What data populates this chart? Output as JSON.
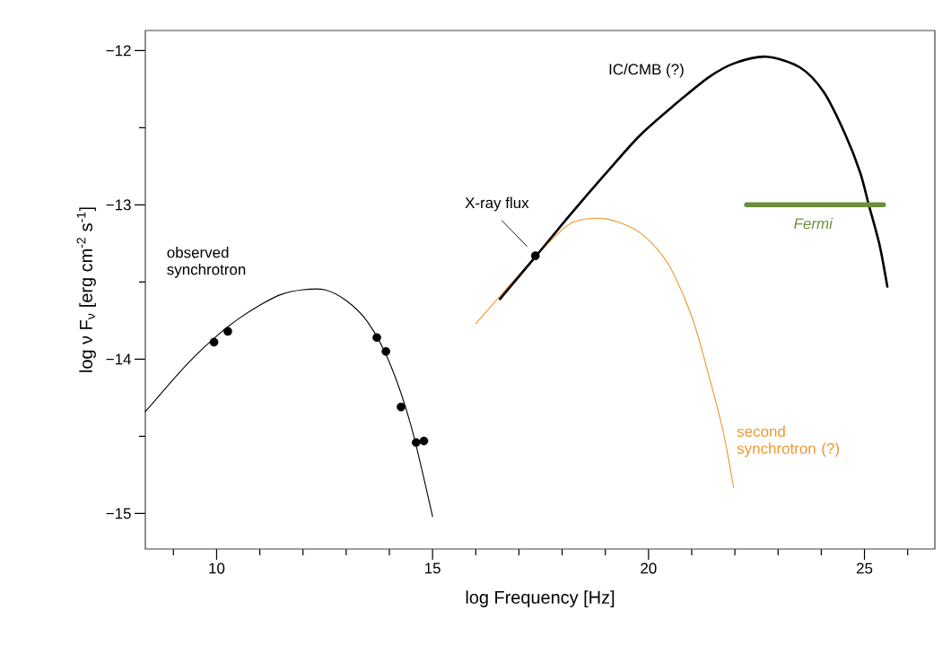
{
  "chart_data": {
    "type": "line",
    "xlabel": "log Frequency [Hz]",
    "ylabel": "log ν F$_{ν}$ [erg cm$^{-2}$ s$^{-1}$]",
    "xlim": [
      8.35,
      26.63
    ],
    "ylim": [
      -15.23,
      -11.87
    ],
    "xticks": [
      {
        "value": 9,
        "label": null
      },
      10,
      {
        "value": 11,
        "label": null
      },
      {
        "value": 12,
        "label": null
      },
      {
        "value": 13,
        "label": null
      },
      {
        "value": 14,
        "label": null
      },
      15,
      {
        "value": 16,
        "label": null
      },
      {
        "value": 17,
        "label": null
      },
      {
        "value": 18,
        "label": null
      },
      {
        "value": 19,
        "label": null
      },
      20,
      {
        "value": 21,
        "label": null
      },
      {
        "value": 22,
        "label": null
      },
      {
        "value": 23,
        "label": null
      },
      {
        "value": 24,
        "label": null
      },
      25,
      {
        "value": 26,
        "label": null
      }
    ],
    "yticks": [
      {
        "value": -15,
        "label": "−15"
      },
      {
        "value": -14.5,
        "label": null
      },
      {
        "value": -14,
        "label": "−14"
      },
      {
        "value": -13.5,
        "label": null
      },
      {
        "value": -13,
        "label": "−13"
      },
      {
        "value": -12.5,
        "label": null
      },
      {
        "value": -12,
        "label": "−12"
      }
    ],
    "series": [
      {
        "name": "observed synchrotron",
        "color": "#000000",
        "marker": "none",
        "x": [
          8.35,
          9,
          9.5,
          10,
          10.5,
          11,
          11.5,
          12,
          12.5,
          13,
          13.5,
          14,
          14.5,
          15
        ],
        "values": [
          -14.34,
          -14.13,
          -13.98,
          -13.85,
          -13.74,
          -13.65,
          -13.58,
          -13.55,
          -13.55,
          -13.62,
          -13.76,
          -14.02,
          -14.43,
          -15.02
        ]
      },
      {
        "type": "scatter",
        "color": "#000000",
        "marker": "circle",
        "x": [
          9.94,
          10.26,
          13.71,
          13.92,
          14.27,
          14.62,
          14.8
        ],
        "values": [
          -13.89,
          -13.82,
          -13.86,
          -13.95,
          -14.31,
          -14.54,
          -14.53
        ]
      },
      {
        "name": "second synchrotron (?)",
        "color": "#f0962e",
        "marker": "none",
        "x": [
          16.0,
          17.4,
          18.2,
          19.0,
          19.8,
          20.45,
          21.01,
          21.41,
          21.73,
          21.97
        ],
        "values": [
          -13.77,
          -13.33,
          -13.12,
          -13.09,
          -13.18,
          -13.38,
          -13.73,
          -14.12,
          -14.47,
          -14.83
        ]
      },
      {
        "name": "IC/CMB (?)",
        "color": "#000000",
        "marker": "none",
        "x": [
          16.56,
          17.4,
          18.2,
          19.0,
          19.8,
          20.61,
          21.41,
          22.01,
          22.74,
          23.51,
          24.06,
          24.55,
          24.9,
          25.1,
          25.35,
          25.53
        ],
        "values": [
          -13.61,
          -13.33,
          -13.06,
          -12.8,
          -12.55,
          -12.35,
          -12.17,
          -12.08,
          -12.04,
          -12.11,
          -12.27,
          -12.54,
          -12.79,
          -13.0,
          -13.26,
          -13.53
        ]
      },
      {
        "name": "X-ray flux",
        "type": "scatter",
        "color": "#000000",
        "marker": "circle",
        "x": [
          17.38
        ],
        "values": [
          -13.33
        ]
      },
      {
        "name": "Fermi",
        "color": "#6b8e3a",
        "marker": "none",
        "x": [
          22.27,
          25.44
        ],
        "values": [
          -13.0,
          -13.0
        ]
      }
    ]
  }
}
